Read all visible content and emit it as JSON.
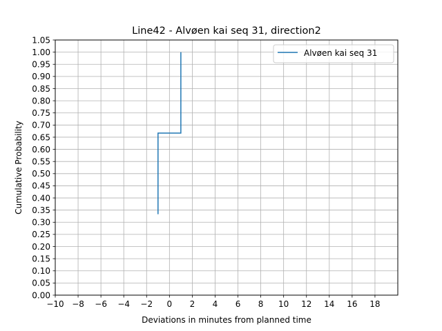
{
  "chart_data": {
    "type": "line",
    "title": "Line42 - Alvøen kai seq 31, direction2",
    "xlabel": "Deviations in minutes from planned time",
    "ylabel": "Cumulative Probability",
    "xlim": [
      -10,
      20
    ],
    "ylim": [
      0,
      1.05
    ],
    "x_ticks": [
      -10,
      -8,
      -6,
      -4,
      -2,
      0,
      2,
      4,
      6,
      8,
      10,
      12,
      14,
      16,
      18
    ],
    "x_tick_labels": [
      "−10",
      "−8",
      "−6",
      "−4",
      "−2",
      "0",
      "2",
      "4",
      "6",
      "8",
      "10",
      "12",
      "14",
      "16",
      "18"
    ],
    "y_ticks": [
      0,
      0.05,
      0.1,
      0.15,
      0.2,
      0.25,
      0.3,
      0.35,
      0.4,
      0.45,
      0.5,
      0.55,
      0.6,
      0.65,
      0.7,
      0.75,
      0.8,
      0.85,
      0.9,
      0.95,
      1.0,
      1.05
    ],
    "y_tick_labels": [
      "0.00",
      "0.05",
      "0.10",
      "0.15",
      "0.20",
      "0.25",
      "0.30",
      "0.35",
      "0.40",
      "0.45",
      "0.50",
      "0.55",
      "0.60",
      "0.65",
      "0.70",
      "0.75",
      "0.80",
      "0.85",
      "0.90",
      "0.95",
      "1.00",
      "1.05"
    ],
    "grid": true,
    "legend_position": "upper right",
    "series": [
      {
        "name": "Alvøen kai seq 31",
        "color": "#1f77b4",
        "step": true,
        "points": [
          {
            "x": -1,
            "y": 0.333
          },
          {
            "x": -1,
            "y": 0.667
          },
          {
            "x": 1,
            "y": 0.667
          },
          {
            "x": 1,
            "y": 1.0
          }
        ]
      }
    ]
  }
}
